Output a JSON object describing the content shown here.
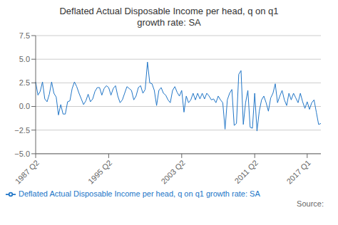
{
  "chart_data": {
    "type": "line",
    "title": "Deflated Actual Disposable Income per head, q on q1\ngrowth rate: SA",
    "categories": [
      "1987 Q2",
      null,
      null,
      null,
      null,
      null,
      null,
      null,
      null,
      null,
      null,
      null,
      null,
      null,
      null,
      null,
      null,
      null,
      null,
      null,
      null,
      null,
      null,
      null,
      null,
      null,
      null,
      null,
      null,
      null,
      null,
      null,
      "1995 Q2",
      null,
      null,
      null,
      null,
      null,
      null,
      null,
      null,
      null,
      null,
      null,
      null,
      null,
      null,
      null,
      null,
      null,
      null,
      null,
      null,
      null,
      null,
      null,
      null,
      null,
      null,
      null,
      null,
      null,
      null,
      null,
      "2003 Q2",
      null,
      null,
      null,
      null,
      null,
      null,
      null,
      null,
      null,
      null,
      null,
      null,
      null,
      null,
      null,
      null,
      null,
      null,
      null,
      null,
      null,
      null,
      null,
      null,
      null,
      null,
      null,
      null,
      null,
      null,
      null,
      "2011 Q2",
      null,
      null,
      null,
      null,
      null,
      null,
      null,
      null,
      null,
      null,
      null,
      null,
      null,
      null,
      null,
      null,
      null,
      null,
      null,
      null,
      null,
      null,
      "2017 Q1",
      null,
      null,
      null,
      null,
      null,
      null
    ],
    "series": [
      {
        "name": "Deflated Actual Disposable Income per head, q on q1 growth rate: SA",
        "color": "#2176C7",
        "values": [
          2.6,
          1.2,
          1.6,
          2.6,
          0.8,
          0.5,
          1.3,
          2.6,
          1.4,
          1.0,
          -0.9,
          0.2,
          -0.8,
          -0.8,
          0.5,
          0.6,
          1.9,
          2.6,
          2.1,
          1.4,
          0.8,
          0.2,
          0.6,
          1.3,
          0.5,
          0.8,
          1.6,
          2.0,
          2.0,
          1.2,
          1.9,
          2.2,
          2.0,
          1.2,
          1.9,
          2.2,
          1.1,
          0.4,
          0.7,
          1.4,
          2.1,
          1.9,
          1.7,
          0.7,
          1.1,
          2.0,
          2.2,
          1.4,
          1.8,
          4.7,
          2.5,
          2.4,
          1.7,
          0.1,
          1.7,
          2.0,
          1.4,
          1.2,
          0.7,
          0.4,
          1.7,
          2.1,
          1.5,
          1.1,
          1.7,
          -0.6,
          1.1,
          0.4,
          0.7,
          1.4,
          0.7,
          1.4,
          0.8,
          1.4,
          0.8,
          1.4,
          1.1,
          0.7,
          0.8,
          0.4,
          1.1,
          0.7,
          0.4,
          -2.4,
          0.7,
          1.4,
          1.8,
          -2.0,
          -1.8,
          3.4,
          3.8,
          -1.9,
          0.4,
          1.7,
          -2.2,
          -2.3,
          1.4,
          -2.6,
          -0.5,
          0.7,
          1.1,
          0.4,
          -0.5,
          0.9,
          1.4,
          2.4,
          0.4,
          1.1,
          1.7,
          0.7,
          0.1,
          1.4,
          0.7,
          1.4,
          0.9,
          0.4,
          1.4,
          0.5,
          -0.2,
          0.5,
          -0.3,
          0.4,
          0.7,
          -0.6,
          -1.9,
          -1.8
        ]
      }
    ],
    "ylim": [
      -5,
      7.5
    ],
    "yticks": [
      {
        "value": -5,
        "label": "−5.0"
      },
      {
        "value": -2.5,
        "label": "−2.5"
      },
      {
        "value": 0,
        "label": "0.0"
      },
      {
        "value": 2.5,
        "label": "2.5"
      },
      {
        "value": 5,
        "label": "5.0"
      },
      {
        "value": 7.5,
        "label": "7.5"
      }
    ],
    "grid": true,
    "legend": "lower left",
    "annotations": [
      "Source:"
    ]
  }
}
